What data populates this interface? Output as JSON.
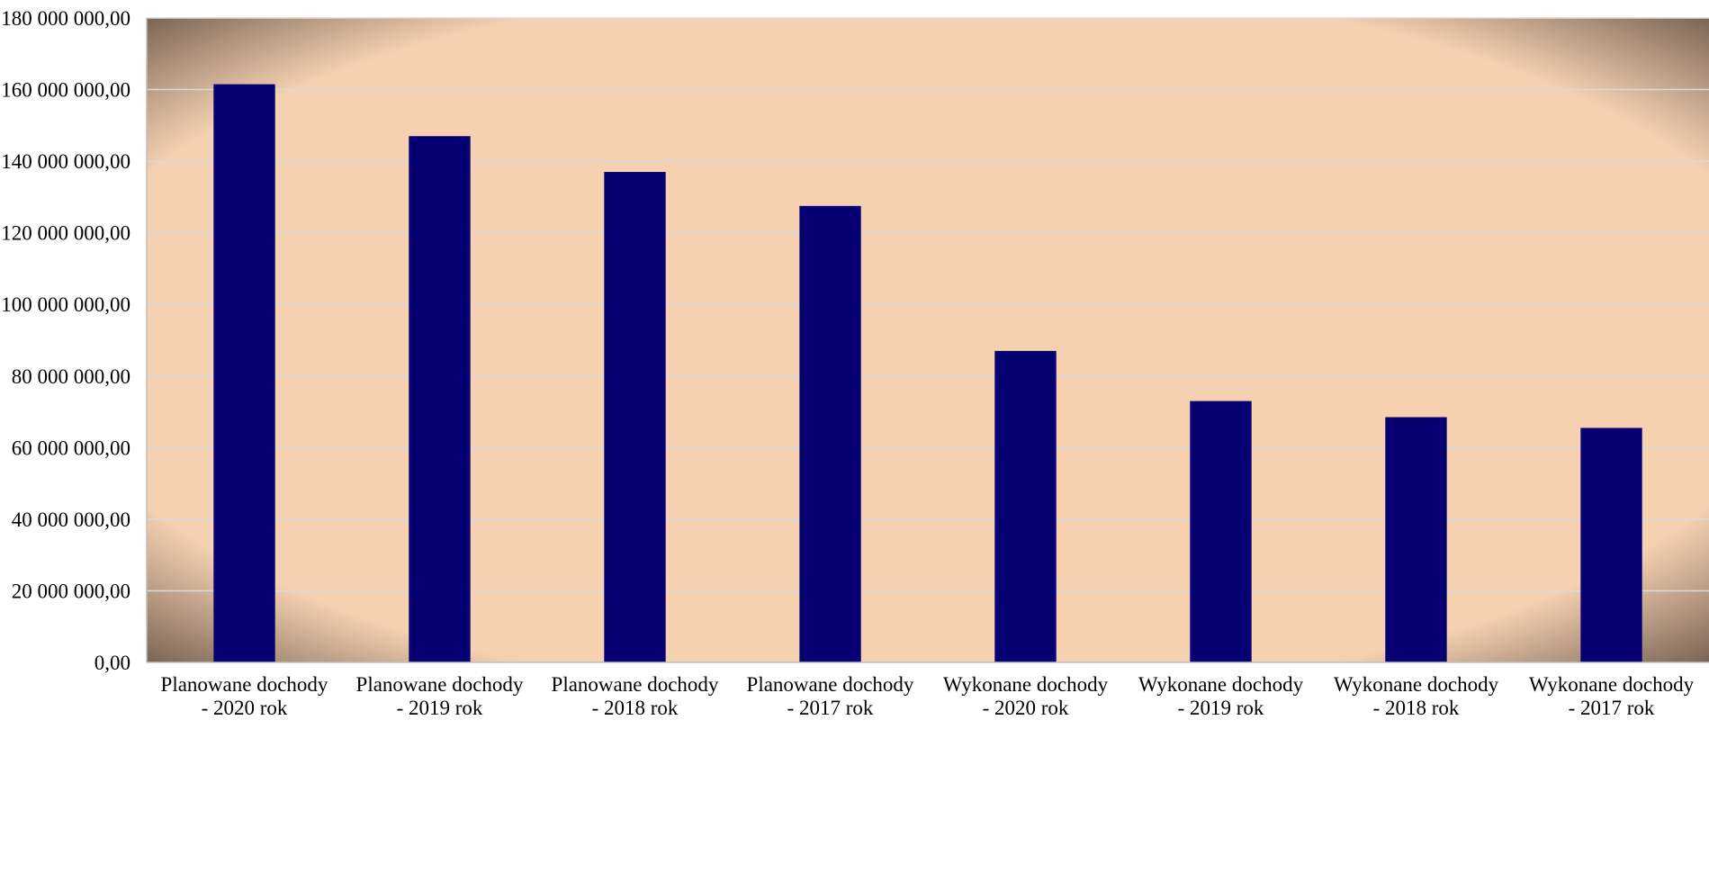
{
  "colors": {
    "bar": "#070073",
    "plot_center": "#f5d0b1",
    "plot_edge": "#6e5b4d",
    "gridline": "#d9d9d9",
    "axis": "#bfbfbf"
  },
  "chart_data": {
    "type": "bar",
    "title": "",
    "xlabel": "",
    "ylabel": "",
    "ylim": [
      0,
      180000000
    ],
    "y_ticks": [
      {
        "value": 0,
        "label": "0,00"
      },
      {
        "value": 20000000,
        "label": "20 000 000,00"
      },
      {
        "value": 40000000,
        "label": "40 000 000,00"
      },
      {
        "value": 60000000,
        "label": "60 000 000,00"
      },
      {
        "value": 80000000,
        "label": "80 000 000,00"
      },
      {
        "value": 100000000,
        "label": "100 000 000,00"
      },
      {
        "value": 120000000,
        "label": "120 000 000,00"
      },
      {
        "value": 140000000,
        "label": "140 000 000,00"
      },
      {
        "value": 160000000,
        "label": "160 000 000,00"
      },
      {
        "value": 180000000,
        "label": "180 000 000,00"
      }
    ],
    "categories": [
      [
        "Planowane dochody",
        "- 2020 rok"
      ],
      [
        "Planowane dochody",
        "- 2019 rok"
      ],
      [
        "Planowane dochody",
        "- 2018 rok"
      ],
      [
        "Planowane dochody",
        "- 2017 rok"
      ],
      [
        "Wykonane dochody",
        "- 2020 rok"
      ],
      [
        "Wykonane dochody",
        "- 2019 rok"
      ],
      [
        "Wykonane dochody",
        "- 2018 rok"
      ],
      [
        "Wykonane dochody",
        "- 2017 rok"
      ]
    ],
    "values": [
      161500000,
      147000000,
      137000000,
      127500000,
      87000000,
      73000000,
      68500000,
      65500000
    ],
    "grid": true,
    "legend": "none"
  }
}
